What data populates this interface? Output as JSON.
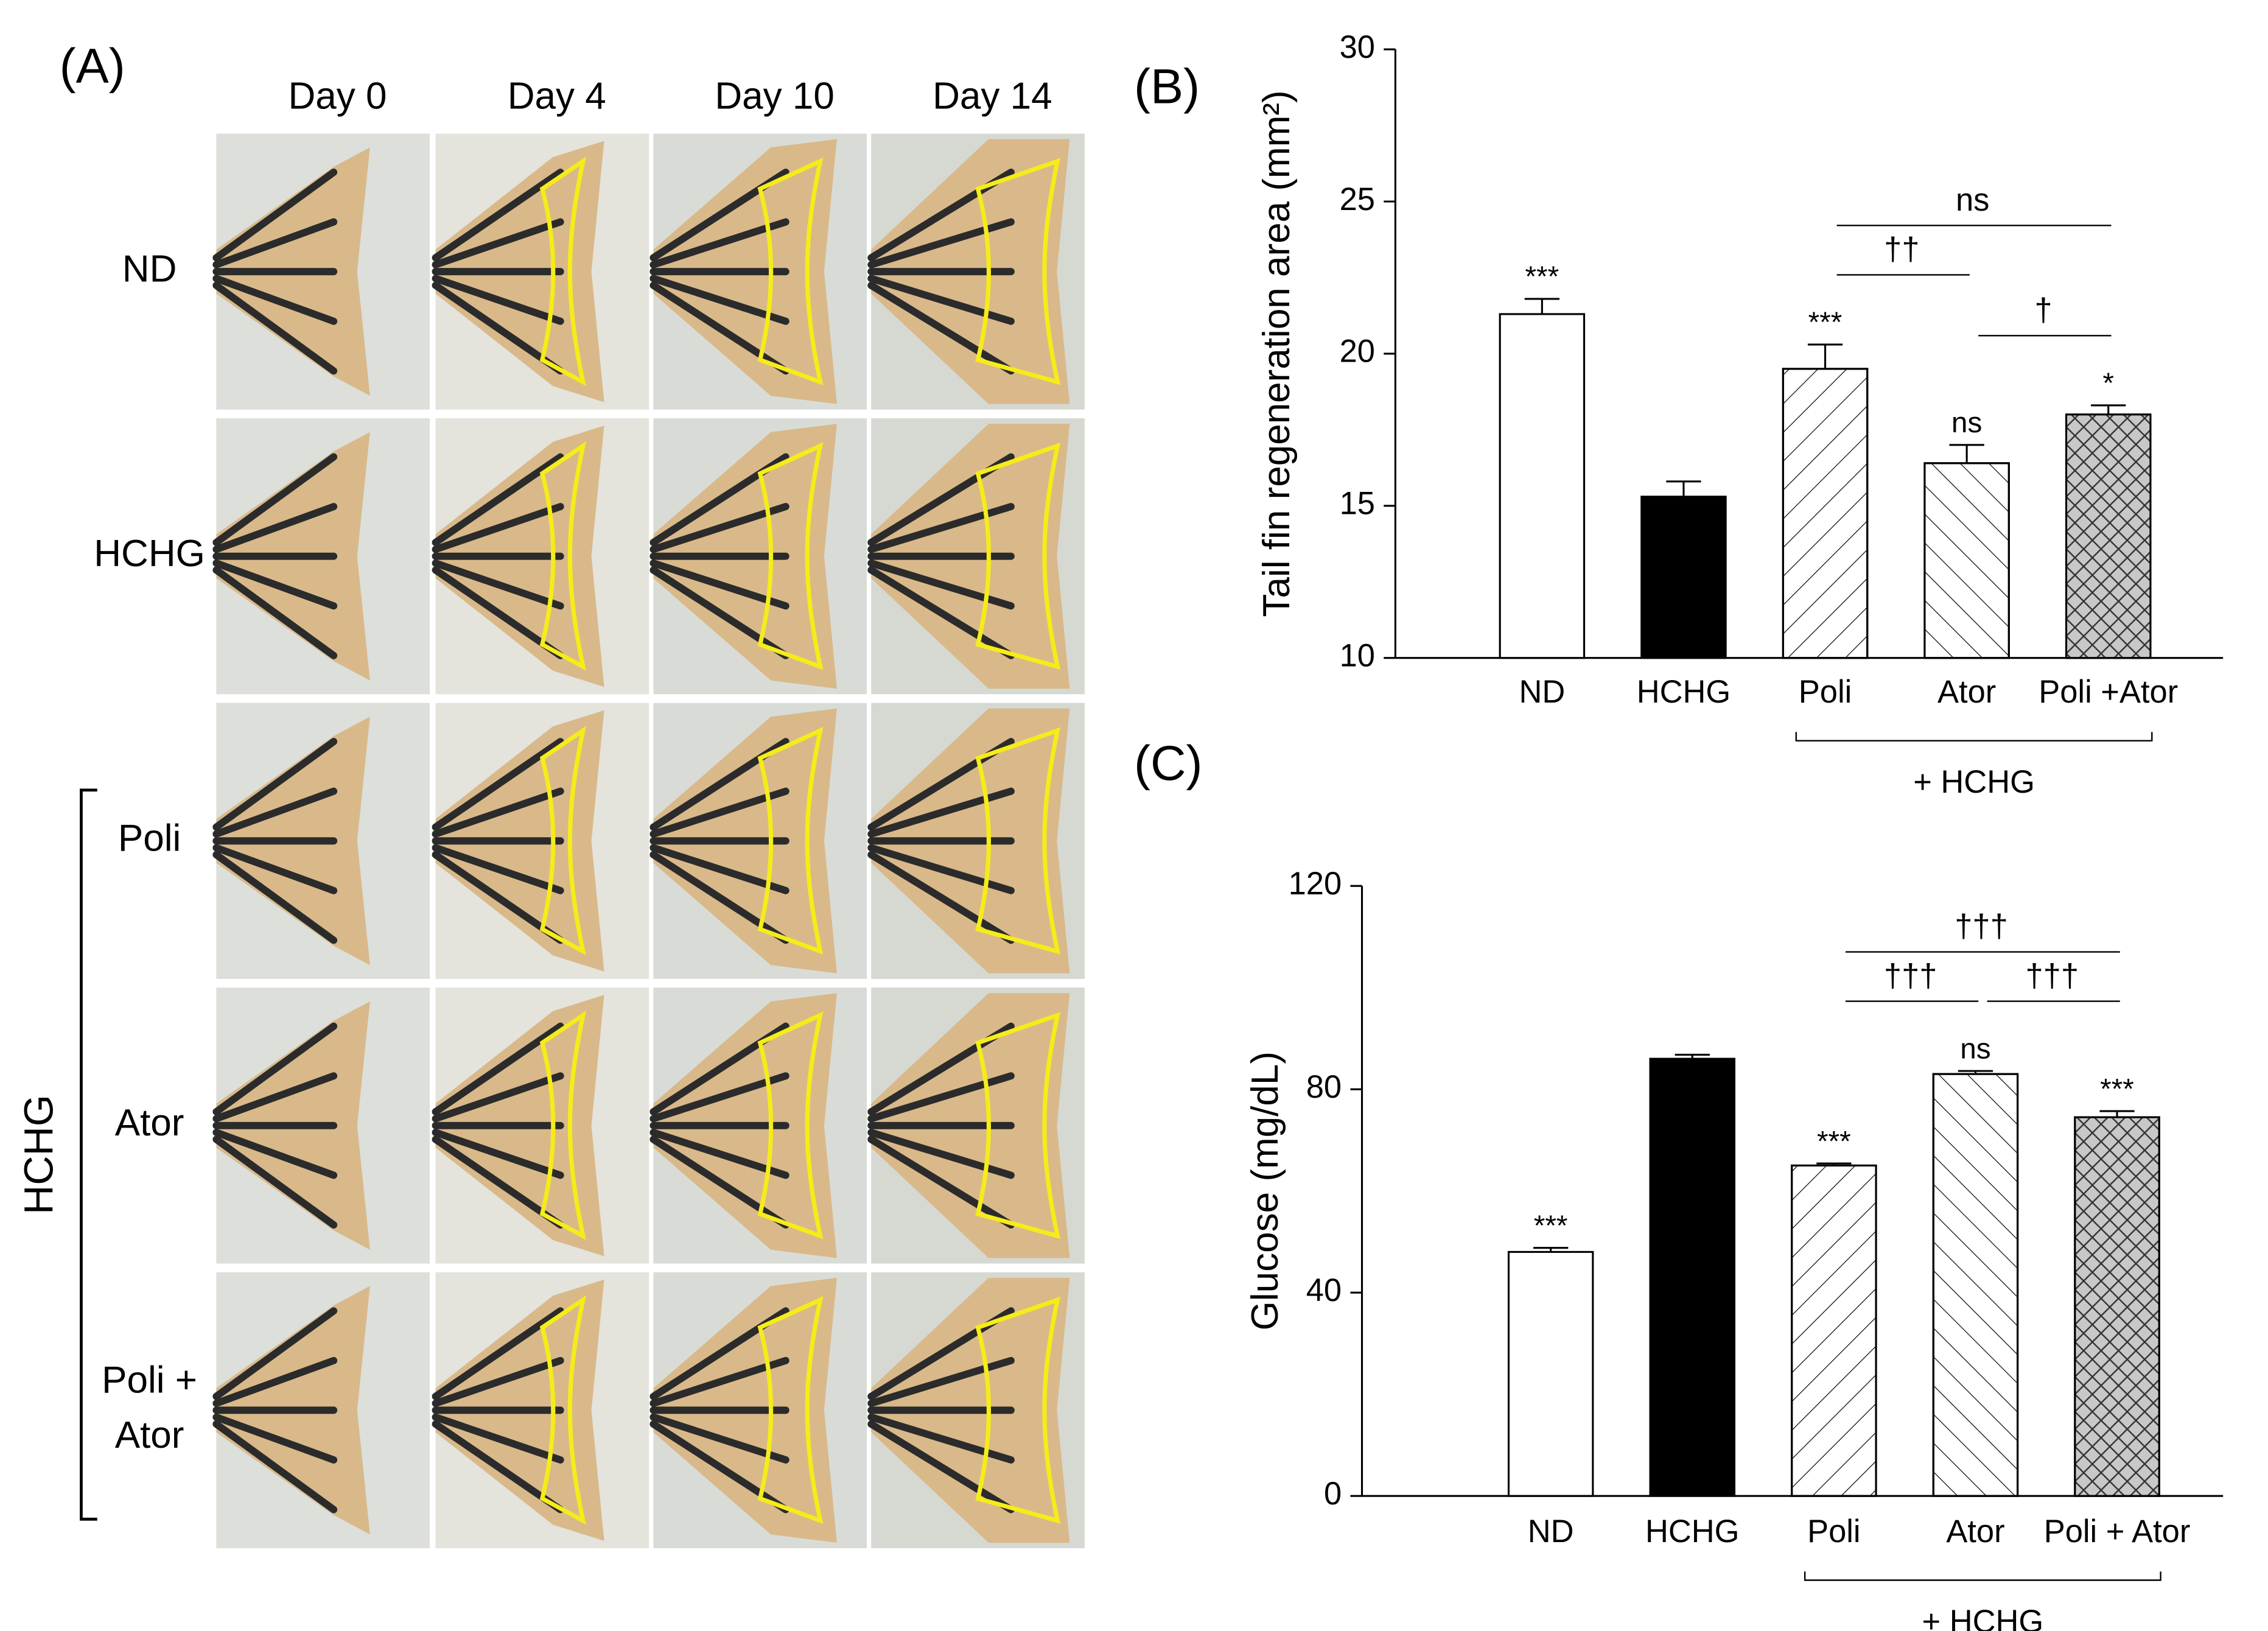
{
  "panel_a": {
    "label": "(A)",
    "days": [
      "Day 0",
      "Day 4",
      "Day 10",
      "Day 14"
    ],
    "groups": [
      [
        "ND"
      ],
      [
        "HCHG"
      ],
      [
        "Poli"
      ],
      [
        "Ator"
      ],
      [
        "Poli +",
        "Ator"
      ]
    ],
    "bracket_label": "HCHG",
    "bracket_rows": [
      2,
      4
    ]
  },
  "chart_data": [
    {
      "type": "bar",
      "panel": "(B)",
      "y_label": "Tail fin regeneration area (mm²)",
      "categories": [
        "ND",
        "HCHG",
        "Poli",
        "Ator",
        "Poli +Ator"
      ],
      "values": [
        21.3,
        15.3,
        19.5,
        16.4,
        18.0
      ],
      "errors": [
        0.5,
        0.5,
        0.8,
        0.6,
        0.3
      ],
      "fills": [
        "#ffffff",
        "#000000",
        "#ffffff",
        "#ffffff",
        "#c8c8c8"
      ],
      "hatch": [
        null,
        null,
        "/",
        "\\",
        "x"
      ],
      "annotations": [
        "***",
        null,
        "***",
        "ns",
        "*"
      ],
      "comparisons": [
        {
          "from": 2,
          "to": 4,
          "label": "ns"
        },
        {
          "from": 2,
          "to": 3,
          "label": "††"
        },
        {
          "from": 3,
          "to": 4,
          "label": "†"
        }
      ],
      "group": [
        2,
        4
      ],
      "group_label": "+ HCHG",
      "ylim": [
        10,
        30
      ],
      "yticks": [
        10,
        15,
        20,
        25,
        30
      ],
      "grid": false
    },
    {
      "type": "bar",
      "panel": "(C)",
      "y_label": "Glucose (mg/dL)",
      "categories": [
        "ND",
        "HCHG",
        "Poli",
        "Ator",
        "Poli + Ator"
      ],
      "values": [
        48,
        86,
        65,
        83,
        74.5
      ],
      "errors": [
        0.8,
        0.8,
        0.4,
        0.6,
        1.2
      ],
      "fills": [
        "#ffffff",
        "#000000",
        "#ffffff",
        "#ffffff",
        "#c8c8c8"
      ],
      "hatch": [
        null,
        null,
        "/",
        "\\",
        "x"
      ],
      "annotations": [
        "***",
        null,
        "***",
        "ns",
        "***"
      ],
      "comparisons": [
        {
          "from": 2,
          "to": 4,
          "label": "†††"
        },
        {
          "from": 3,
          "to": 4,
          "label": "†††"
        },
        {
          "from": 2,
          "to": 3,
          "label": "†††"
        }
      ],
      "group": [
        2,
        4
      ],
      "group_label": "+ HCHG",
      "ylim": [
        0,
        120
      ],
      "yticks": [
        0,
        40,
        80,
        120
      ],
      "grid": false
    }
  ]
}
